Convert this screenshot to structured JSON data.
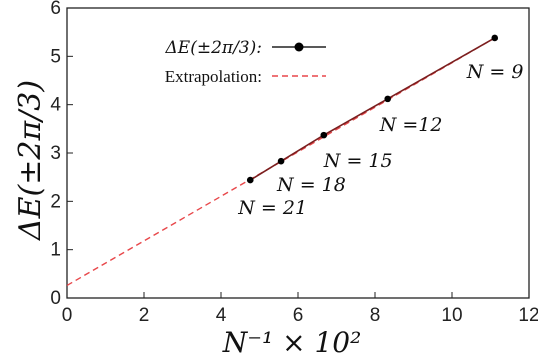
{
  "chart_data": {
    "type": "scatter",
    "xlabel": "N⁻¹ × 10²",
    "ylabel": "ΔE(±2π/3)",
    "xlim": [
      0,
      12
    ],
    "ylim": [
      0,
      6
    ],
    "xticks": [
      "0",
      "2",
      "4",
      "6",
      "8",
      "10",
      "12"
    ],
    "yticks": [
      "0",
      "1",
      "2",
      "3",
      "4",
      "5",
      "6"
    ],
    "grid": false,
    "legend_position": "top-left",
    "series": [
      {
        "name": "ΔE(±2π/3):",
        "type": "line+markers",
        "color": "#000000",
        "line_color": "#7a1f1f",
        "x": [
          11.11,
          8.33,
          6.67,
          5.56,
          4.76
        ],
        "y": [
          5.38,
          4.12,
          3.37,
          2.83,
          2.44
        ]
      },
      {
        "name": "Extrapolation:",
        "type": "dashed-line",
        "color": "#e8474a",
        "x": [
          0,
          11.11
        ],
        "y": [
          0.26,
          5.38
        ]
      }
    ],
    "annotations": [
      {
        "text": "N = 9",
        "x": 11.11,
        "y": 5.38
      },
      {
        "text": "N =12",
        "x": 8.33,
        "y": 4.12
      },
      {
        "text": "N = 15",
        "x": 6.67,
        "y": 3.37
      },
      {
        "text": "N = 18",
        "x": 5.56,
        "y": 2.83
      },
      {
        "text": "N = 21",
        "x": 4.76,
        "y": 2.44
      }
    ]
  }
}
